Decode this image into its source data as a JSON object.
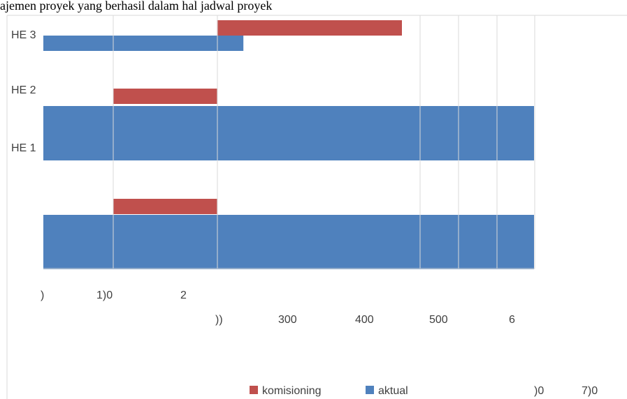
{
  "page": {
    "caption_fragment": "ajemen proyek yang berhasil dalam hal jadwal proyek"
  },
  "colors": {
    "komisioning": "#c0504d",
    "aktual": "#4f81bd",
    "grid": "#d9d9d9",
    "text": "#404040"
  },
  "chart_data": {
    "type": "bar",
    "orientation": "horizontal",
    "categories": [
      "",
      "HE 1",
      "HE 2",
      "HE 3"
    ],
    "series": [
      {
        "name": "aktual",
        "values": [
          650,
          650,
          0,
          265
        ]
      },
      {
        "name": "komisioning",
        "values": [
          137,
          0,
          137,
          245
        ],
        "start": [
          93,
          0,
          93,
          230
        ]
      }
    ],
    "x_tick_labels_row1": [
      ")",
      "1)0",
      "2"
    ],
    "x_tick_labels_row2": [
      "))",
      "300",
      "400",
      "500",
      "6"
    ],
    "x_tick_labels_row3": [
      ")0",
      "7)0"
    ],
    "legend": [
      "komisioning",
      "aktual"
    ],
    "legend_position": "bottom",
    "grid": true
  }
}
